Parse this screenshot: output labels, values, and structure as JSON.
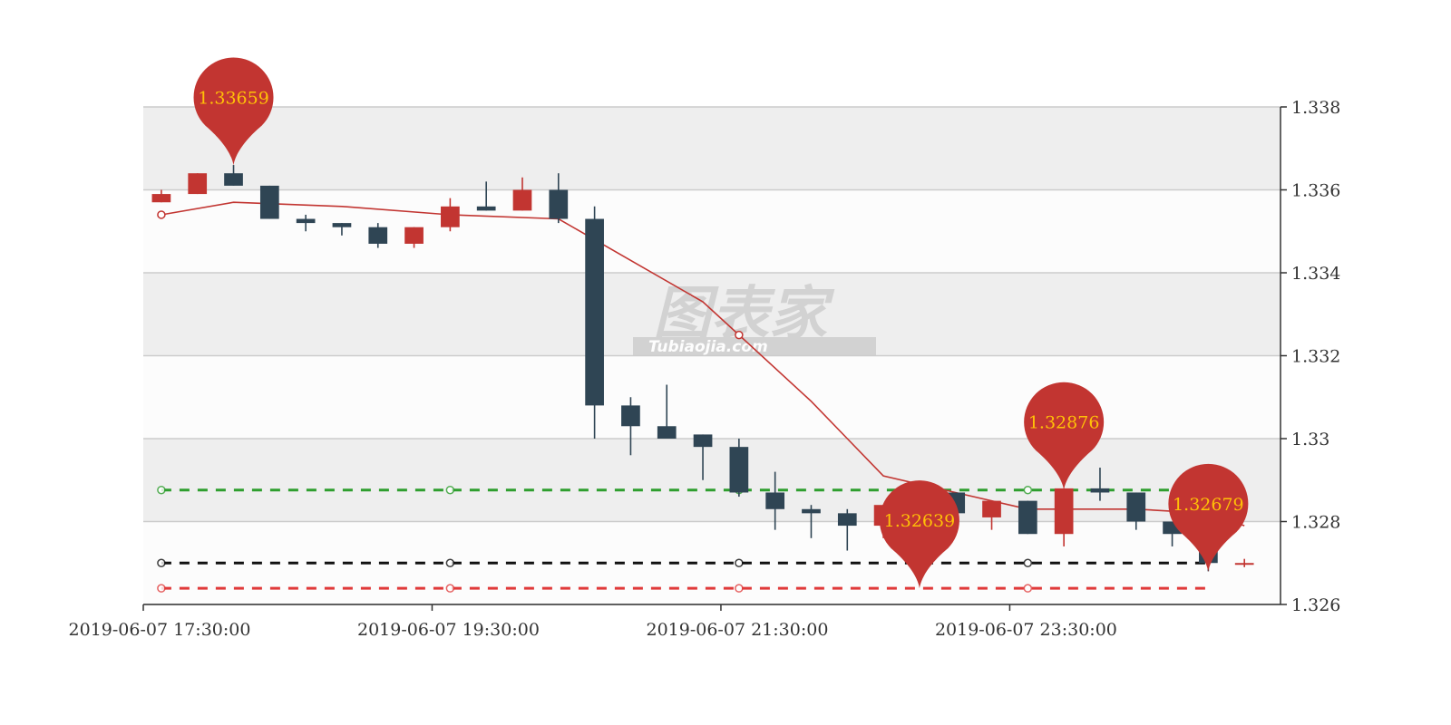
{
  "chart_data": {
    "type": "candlestick",
    "title": "",
    "x_tick_labels": [
      "2019-06-07  17:30:00",
      "2019-06-07  19:30:00",
      "2019-06-07  21:30:00",
      "2019-06-07  23:30:00"
    ],
    "y_tick_labels": [
      "1.326",
      "1.328",
      "1.33",
      "1.332",
      "1.334",
      "1.336",
      "1.338"
    ],
    "ylim": [
      1.326,
      1.338
    ],
    "y_axis_position": "right",
    "grid": true,
    "candles": [
      {
        "open": 1.3357,
        "close": 1.3359,
        "high": 1.336,
        "low": 1.3357
      },
      {
        "open": 1.3359,
        "close": 1.3364,
        "high": 1.3364,
        "low": 1.3359
      },
      {
        "open": 1.3364,
        "close": 1.3361,
        "high": 1.3366,
        "low": 1.3361
      },
      {
        "open": 1.3361,
        "close": 1.3353,
        "high": 1.3361,
        "low": 1.3353
      },
      {
        "open": 1.3353,
        "close": 1.3352,
        "high": 1.3354,
        "low": 1.335
      },
      {
        "open": 1.3352,
        "close": 1.3351,
        "high": 1.3352,
        "low": 1.3349
      },
      {
        "open": 1.3351,
        "close": 1.3347,
        "high": 1.3352,
        "low": 1.3346
      },
      {
        "open": 1.3347,
        "close": 1.3351,
        "high": 1.3351,
        "low": 1.3346
      },
      {
        "open": 1.3351,
        "close": 1.3356,
        "high": 1.3358,
        "low": 1.335
      },
      {
        "open": 1.3356,
        "close": 1.3355,
        "high": 1.3362,
        "low": 1.3355
      },
      {
        "open": 1.3355,
        "close": 1.336,
        "high": 1.3363,
        "low": 1.3355
      },
      {
        "open": 1.336,
        "close": 1.3353,
        "high": 1.3364,
        "low": 1.3352
      },
      {
        "open": 1.3353,
        "close": 1.3308,
        "high": 1.3356,
        "low": 1.33
      },
      {
        "open": 1.3308,
        "close": 1.3303,
        "high": 1.331,
        "low": 1.3296
      },
      {
        "open": 1.3303,
        "close": 1.33,
        "high": 1.3313,
        "low": 1.33
      },
      {
        "open": 1.3301,
        "close": 1.3298,
        "high": 1.3301,
        "low": 1.329
      },
      {
        "open": 1.3298,
        "close": 1.3287,
        "high": 1.33,
        "low": 1.3286
      },
      {
        "open": 1.3287,
        "close": 1.3283,
        "high": 1.3292,
        "low": 1.3278
      },
      {
        "open": 1.3283,
        "close": 1.3282,
        "high": 1.3284,
        "low": 1.3276
      },
      {
        "open": 1.3282,
        "close": 1.3279,
        "high": 1.3283,
        "low": 1.3273
      },
      {
        "open": 1.3279,
        "close": 1.3284,
        "high": 1.3284,
        "low": 1.3276
      },
      {
        "open": 1.3284,
        "close": 1.3288,
        "high": 1.3288,
        "low": 1.3284
      },
      {
        "open": 1.3287,
        "close": 1.3282,
        "high": 1.3287,
        "low": 1.3281
      },
      {
        "open": 1.3281,
        "close": 1.3285,
        "high": 1.3285,
        "low": 1.3278
      },
      {
        "open": 1.3285,
        "close": 1.3277,
        "high": 1.3285,
        "low": 1.3277
      },
      {
        "open": 1.3277,
        "close": 1.3288,
        "high": 1.3288,
        "low": 1.3274
      },
      {
        "open": 1.3288,
        "close": 1.3287,
        "high": 1.3293,
        "low": 1.3285
      },
      {
        "open": 1.3287,
        "close": 1.328,
        "high": 1.3287,
        "low": 1.3278
      },
      {
        "open": 1.328,
        "close": 1.3277,
        "high": 1.328,
        "low": 1.3274
      },
      {
        "open": 1.3277,
        "close": 1.327,
        "high": 1.3277,
        "low": 1.3268
      },
      {
        "open": 1.327,
        "close": 1.327,
        "high": 1.3271,
        "low": 1.3269
      }
    ],
    "moving_average": [
      {
        "i": 0,
        "v": 1.3354
      },
      {
        "i": 2,
        "v": 1.3357
      },
      {
        "i": 5,
        "v": 1.3356
      },
      {
        "i": 8,
        "v": 1.3354
      },
      {
        "i": 11,
        "v": 1.3353
      },
      {
        "i": 13,
        "v": 1.3343
      },
      {
        "i": 15,
        "v": 1.3333
      },
      {
        "i": 16,
        "v": 1.3325
      },
      {
        "i": 18,
        "v": 1.3309
      },
      {
        "i": 19,
        "v": 1.33
      },
      {
        "i": 20,
        "v": 1.3291
      },
      {
        "i": 22,
        "v": 1.3287
      },
      {
        "i": 24,
        "v": 1.3283
      },
      {
        "i": 25,
        "v": 1.3283
      },
      {
        "i": 27,
        "v": 1.3283
      },
      {
        "i": 29,
        "v": 1.3282
      },
      {
        "i": 30,
        "v": 1.3279
      }
    ],
    "ma_markers": [
      0,
      8,
      16,
      24
    ],
    "horizontal_lines": [
      {
        "value": 1.32876,
        "color": "#2e9e2e"
      },
      {
        "value": 1.327,
        "color": "#111111"
      },
      {
        "value": 1.32639,
        "color": "#e03a3a"
      }
    ],
    "hline_markers": [
      0,
      8,
      16,
      24
    ],
    "pins": [
      {
        "label": "1.33659",
        "index": 2,
        "value": 1.33659
      },
      {
        "label": "1.32639",
        "index": 21,
        "value": 1.32639
      },
      {
        "label": "1.32876",
        "index": 25,
        "value": 1.32876
      },
      {
        "label": "1.32679",
        "index": 29,
        "value": 1.32679
      }
    ],
    "colors": {
      "up": "#c23531",
      "down": "#2f4554",
      "ma": "#c23531",
      "pin": "#c23531",
      "pin_text": "#ffc107",
      "band_dark": "#eeeeee",
      "band_light": "#fcfcfc",
      "grid": "#cccccc",
      "axis": "#333333"
    }
  },
  "watermark": {
    "main": "图表家",
    "sub": "Tubiaojia.com"
  }
}
